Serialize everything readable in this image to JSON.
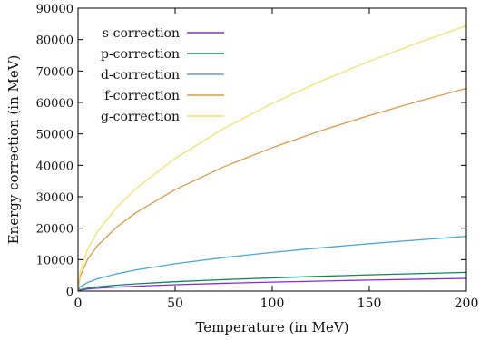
{
  "chart_data": {
    "type": "line",
    "xlabel": "Temperature (in MeV)",
    "ylabel": "Energy correction (in MeV)",
    "xlim": [
      0,
      200
    ],
    "ylim": [
      0,
      90000
    ],
    "x_ticks": [
      "0",
      "50",
      "100",
      "150",
      "200"
    ],
    "y_ticks": [
      "0",
      "10000",
      "20000",
      "30000",
      "40000",
      "50000",
      "60000",
      "70000",
      "80000",
      "90000"
    ],
    "grid": false,
    "legend_position": "top-left",
    "series": [
      {
        "name": "s-correction",
        "color": "#8a2be2",
        "x": [
          0,
          1,
          5,
          10,
          20,
          30,
          50,
          75,
          100,
          125,
          150,
          175,
          200
        ],
        "y": [
          0,
          290,
          640,
          900,
          1270,
          1560,
          2010,
          2470,
          2850,
          3180,
          3490,
          3770,
          4030
        ]
      },
      {
        "name": "p-correction",
        "color": "#0b8a5e",
        "x": [
          0,
          1,
          5,
          10,
          20,
          30,
          50,
          75,
          100,
          125,
          150,
          175,
          200
        ],
        "y": [
          0,
          420,
          940,
          1330,
          1880,
          2300,
          2970,
          3640,
          4200,
          4700,
          5150,
          5560,
          5940
        ]
      },
      {
        "name": "d-correction",
        "color": "#4ca6de",
        "x": [
          0,
          1,
          5,
          10,
          20,
          30,
          50,
          75,
          100,
          125,
          150,
          175,
          200
        ],
        "y": [
          0,
          1230,
          2750,
          3890,
          5500,
          6740,
          8700,
          10650,
          12300,
          13750,
          15060,
          16270,
          17400
        ]
      },
      {
        "name": "f-correction",
        "color": "#dd9a48",
        "x": [
          0,
          1,
          5,
          10,
          20,
          30,
          50,
          75,
          100,
          125,
          150,
          175,
          200
        ],
        "y": [
          0,
          4560,
          10200,
          14430,
          20400,
          25000,
          32250,
          39500,
          45600,
          51000,
          55860,
          60330,
          64500
        ]
      },
      {
        "name": "g-correction",
        "color": "#f2e36a",
        "x": [
          0,
          1,
          5,
          10,
          20,
          30,
          50,
          75,
          100,
          125,
          150,
          175,
          200
        ],
        "y": [
          0,
          5970,
          13350,
          18880,
          26700,
          32700,
          42200,
          51690,
          59700,
          66740,
          73110,
          78960,
          84400
        ]
      }
    ]
  }
}
